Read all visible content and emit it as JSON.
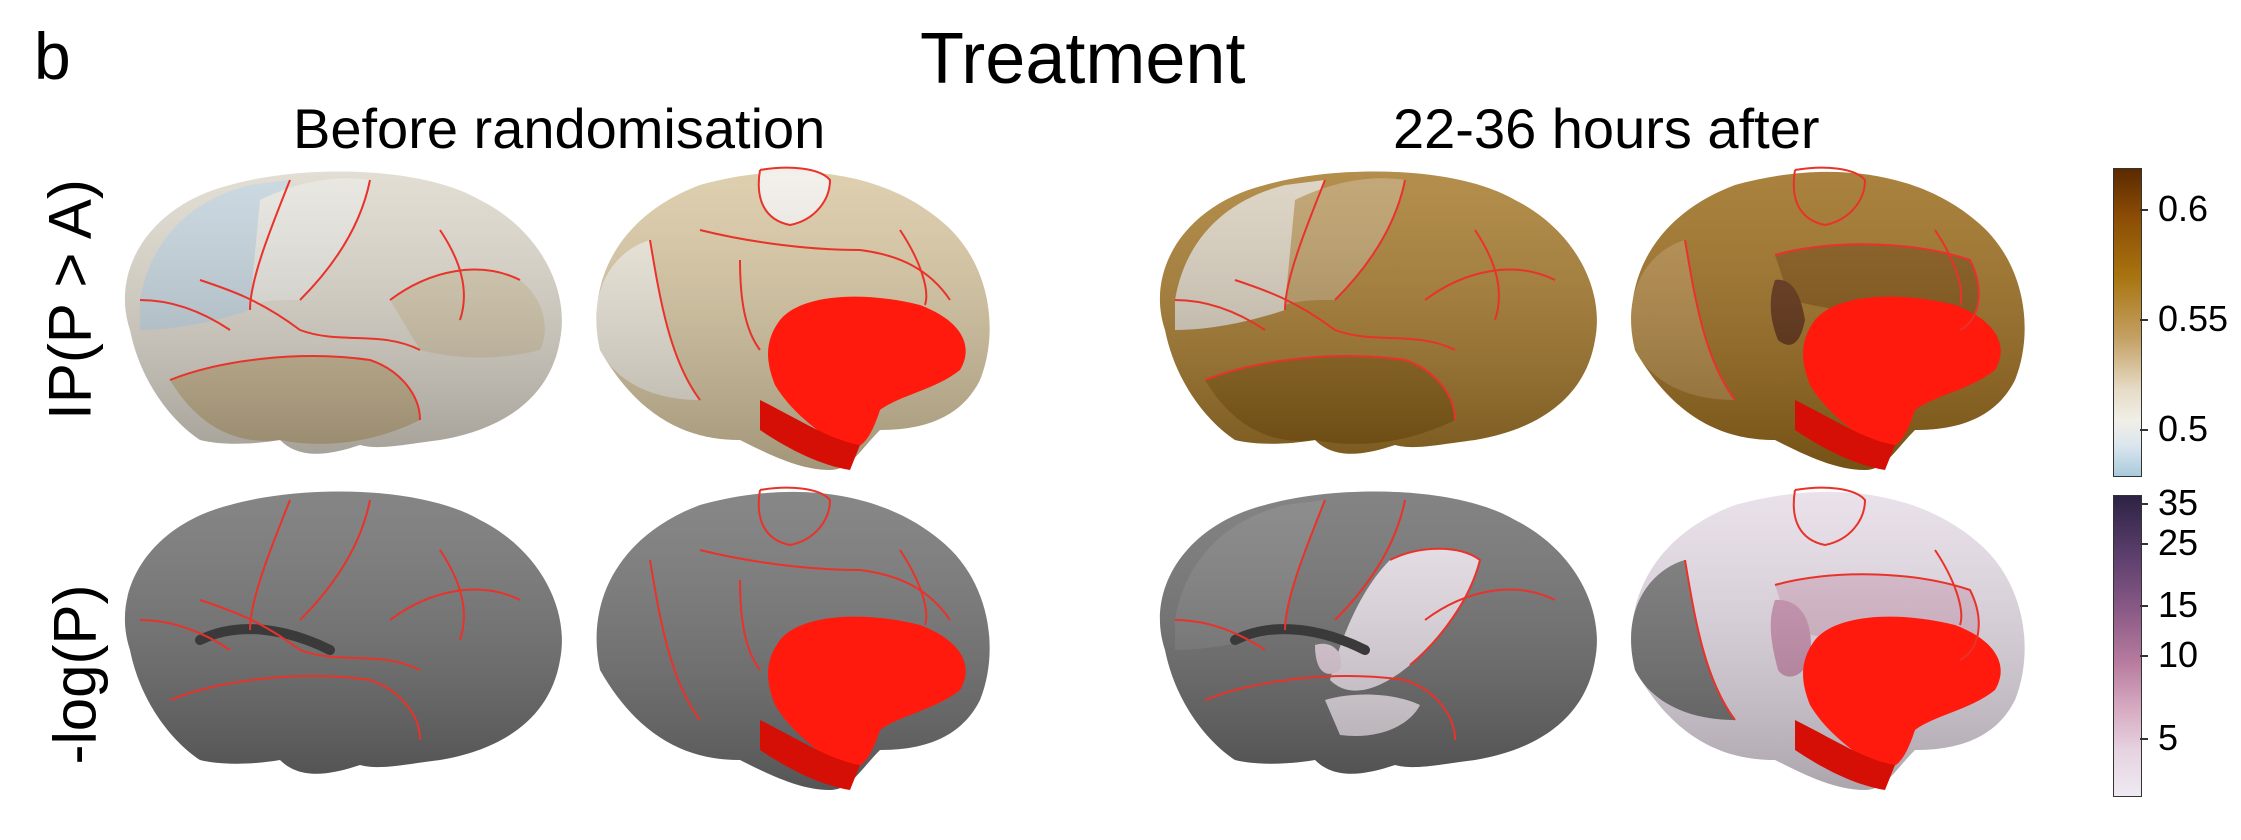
{
  "panel_label": "b",
  "title": "Treatment",
  "columns": [
    "Before randomisation",
    "22-36 hours after"
  ],
  "rows": [
    "IP(P > A)",
    "-log(P)"
  ],
  "colorbar_ip": {
    "ticks": [
      "0.6",
      "0.55",
      "0.5"
    ],
    "colors": [
      "#5b2a00",
      "#a8740f",
      "#e6dcc6",
      "#a9cbdc"
    ]
  },
  "colorbar_logp": {
    "ticks": [
      "35",
      "25",
      "15",
      "10",
      "5"
    ],
    "colors": [
      "#2d2344",
      "#8a5a86",
      "#d6a8c0",
      "#efe9f2"
    ]
  },
  "colors": {
    "subcortical": "#ff1a0d",
    "outline": "#e8322a",
    "gray_surface": "#6f6f6f",
    "ip_before_main": "#cdb88e",
    "ip_after_main": "#9c6d1c",
    "ip_after_dark": "#5b2a0c",
    "logp_light": "#e9dfe8",
    "logp_mid": "#d9b8cb"
  }
}
